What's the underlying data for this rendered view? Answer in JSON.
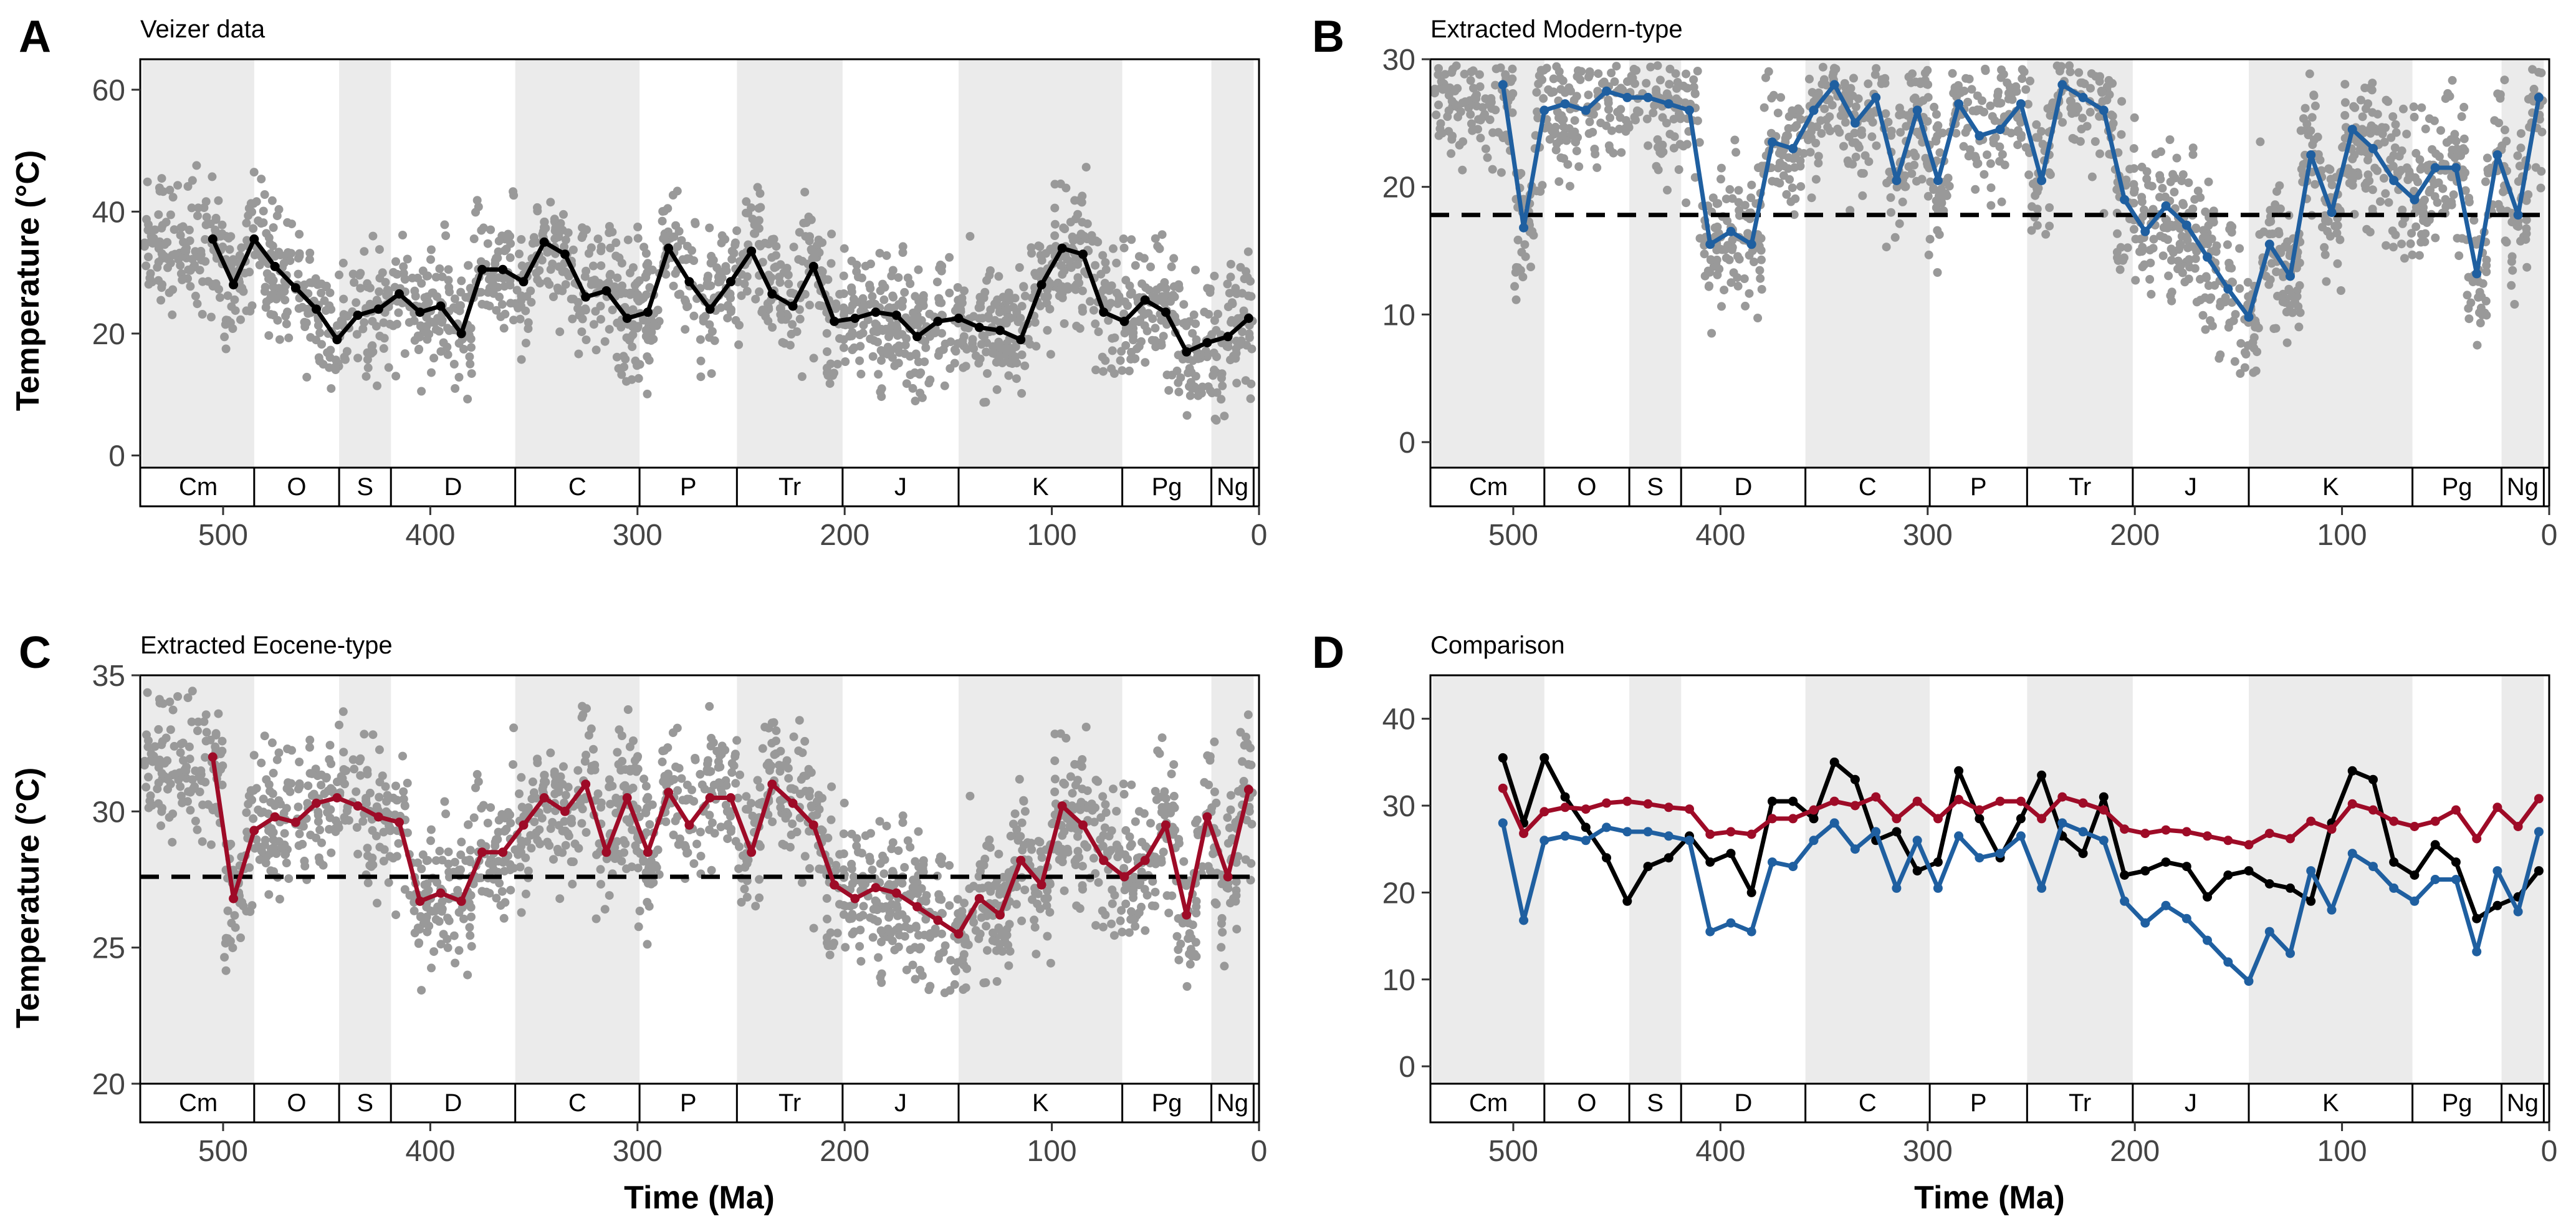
{
  "figure": {
    "xlabel": "Time (Ma)",
    "ylabel": "Temperature (°C)",
    "colors": {
      "data_points": "#999999",
      "veizer_line": "#000000",
      "modern_line": "#1f5fa0",
      "eocene_line": "#9e0b27",
      "period_shade": "#ebebeb",
      "reference_line": "#000000"
    }
  },
  "periods": [
    {
      "label": "Cm",
      "start": 539,
      "end": 485,
      "shaded": true
    },
    {
      "label": "O",
      "start": 485,
      "end": 444,
      "shaded": false
    },
    {
      "label": "S",
      "start": 444,
      "end": 419,
      "shaded": true
    },
    {
      "label": "D",
      "start": 419,
      "end": 359,
      "shaded": false
    },
    {
      "label": "C",
      "start": 359,
      "end": 299,
      "shaded": true
    },
    {
      "label": "P",
      "start": 299,
      "end": 252,
      "shaded": false
    },
    {
      "label": "Tr",
      "start": 252,
      "end": 201,
      "shaded": true
    },
    {
      "label": "J",
      "start": 201,
      "end": 145,
      "shaded": false
    },
    {
      "label": "K",
      "start": 145,
      "end": 66,
      "shaded": true
    },
    {
      "label": "Pg",
      "start": 66,
      "end": 23,
      "shaded": false
    },
    {
      "label": "Ng",
      "start": 23,
      "end": 2.6,
      "shaded": true
    }
  ],
  "chart_data": [
    {
      "panel": "A",
      "type": "line",
      "title": "Veizer data",
      "xlabel": "",
      "ylabel": "Temperature (°C)",
      "xlim": [
        540,
        0
      ],
      "ylim": [
        -2,
        65
      ],
      "xticks": [
        500,
        400,
        300,
        200,
        100,
        0
      ],
      "yticks": [
        0,
        20,
        40,
        60
      ],
      "grid": false,
      "scatter_shown": true,
      "series": [
        {
          "key": "veizer",
          "x": [
            505,
            495,
            485,
            475,
            465,
            455,
            445,
            435,
            425,
            415,
            405,
            395,
            385,
            375,
            365,
            355,
            345,
            335,
            325,
            315,
            305,
            295,
            285,
            275,
            265,
            255,
            245,
            235,
            225,
            215,
            205,
            195,
            185,
            175,
            165,
            155,
            145,
            135,
            125,
            115,
            105,
            95,
            85,
            75,
            65,
            55,
            45,
            35,
            25,
            15,
            5
          ],
          "values": [
            35.5,
            28.0,
            35.5,
            31.0,
            27.5,
            24.0,
            19.0,
            23.0,
            24.0,
            26.5,
            23.5,
            24.5,
            20.0,
            30.5,
            30.5,
            28.5,
            35.0,
            33.0,
            26.0,
            27.0,
            22.5,
            23.5,
            34.0,
            28.5,
            24.0,
            28.5,
            33.5,
            26.5,
            24.5,
            31.0,
            22.0,
            22.5,
            23.5,
            23.0,
            19.5,
            22.0,
            22.5,
            21.0,
            20.5,
            19.0,
            28.0,
            34.0,
            33.0,
            23.5,
            22.0,
            25.5,
            23.5,
            17.0,
            18.5,
            19.5,
            22.5
          ]
        }
      ]
    },
    {
      "panel": "B",
      "type": "line",
      "title": "Extracted Modern-type",
      "xlabel": "",
      "ylabel": "",
      "xlim": [
        540,
        0
      ],
      "ylim": [
        -2,
        30
      ],
      "xticks": [
        500,
        400,
        300,
        200,
        100,
        0
      ],
      "yticks": [
        0,
        10,
        20,
        30
      ],
      "grid": false,
      "scatter_shown": true,
      "reference_line": 17.8,
      "series": [
        {
          "key": "modern",
          "x": [
            505,
            495,
            485,
            475,
            465,
            455,
            445,
            435,
            425,
            415,
            405,
            395,
            385,
            375,
            365,
            355,
            345,
            335,
            325,
            315,
            305,
            295,
            285,
            275,
            265,
            255,
            245,
            235,
            225,
            215,
            205,
            195,
            185,
            175,
            165,
            155,
            145,
            135,
            125,
            115,
            105,
            95,
            85,
            75,
            65,
            55,
            45,
            35,
            25,
            15,
            5
          ],
          "values": [
            28.0,
            16.8,
            26.0,
            26.5,
            26.0,
            27.5,
            27.0,
            27.0,
            26.5,
            26.0,
            15.5,
            16.5,
            15.5,
            23.5,
            23.0,
            26.0,
            28.0,
            25.0,
            27.0,
            20.5,
            26.0,
            20.5,
            26.5,
            24.0,
            24.5,
            26.5,
            20.5,
            28.0,
            27.0,
            26.0,
            19.0,
            16.5,
            18.5,
            17.0,
            14.5,
            12.0,
            9.8,
            15.5,
            13.0,
            22.5,
            18.0,
            24.5,
            23.0,
            20.5,
            19.0,
            21.5,
            21.5,
            13.2,
            22.5,
            17.8,
            27.0
          ]
        }
      ]
    },
    {
      "panel": "C",
      "type": "line",
      "title": "Extracted Eocene-type",
      "xlabel": "",
      "ylabel": "Temperature (°C)",
      "xlim": [
        540,
        0
      ],
      "ylim": [
        20,
        35
      ],
      "xticks": [
        500,
        400,
        300,
        200,
        100,
        0
      ],
      "yticks": [
        20,
        25,
        30,
        35
      ],
      "grid": false,
      "scatter_shown": true,
      "reference_line": 27.6,
      "series": [
        {
          "key": "eocene",
          "x": [
            505,
            495,
            485,
            475,
            465,
            455,
            445,
            435,
            425,
            415,
            405,
            395,
            385,
            375,
            365,
            355,
            345,
            335,
            325,
            315,
            305,
            295,
            285,
            275,
            265,
            255,
            245,
            235,
            225,
            215,
            205,
            195,
            185,
            175,
            165,
            155,
            145,
            135,
            125,
            115,
            105,
            95,
            85,
            75,
            65,
            55,
            45,
            35,
            25,
            15,
            5
          ],
          "values": [
            32.0,
            26.8,
            29.3,
            29.8,
            29.6,
            30.3,
            30.5,
            30.2,
            29.8,
            29.6,
            26.7,
            27.0,
            26.7,
            28.5,
            28.5,
            29.5,
            30.5,
            30.0,
            31.0,
            28.5,
            30.5,
            28.5,
            30.7,
            29.5,
            30.5,
            30.5,
            28.5,
            31.0,
            30.3,
            29.5,
            27.3,
            26.8,
            27.2,
            27.0,
            26.5,
            26.0,
            25.5,
            26.8,
            26.2,
            28.2,
            27.3,
            30.2,
            29.5,
            28.2,
            27.6,
            28.2,
            29.5,
            26.2,
            29.8,
            27.6,
            30.8
          ]
        }
      ]
    },
    {
      "panel": "D",
      "type": "line",
      "title": "Comparison",
      "xlabel": "",
      "ylabel": "",
      "xlim": [
        540,
        0
      ],
      "ylim": [
        -2,
        45
      ],
      "xticks": [
        500,
        400,
        300,
        200,
        100,
        0
      ],
      "yticks": [
        0,
        10,
        20,
        30,
        40
      ],
      "grid": false,
      "scatter_shown": false,
      "series": [
        {
          "key": "veizer",
          "x": [
            505,
            495,
            485,
            475,
            465,
            455,
            445,
            435,
            425,
            415,
            405,
            395,
            385,
            375,
            365,
            355,
            345,
            335,
            325,
            315,
            305,
            295,
            285,
            275,
            265,
            255,
            245,
            235,
            225,
            215,
            205,
            195,
            185,
            175,
            165,
            155,
            145,
            135,
            125,
            115,
            105,
            95,
            85,
            75,
            65,
            55,
            45,
            35,
            25,
            15,
            5
          ],
          "values": [
            35.5,
            28.0,
            35.5,
            31.0,
            27.5,
            24.0,
            19.0,
            23.0,
            24.0,
            26.5,
            23.5,
            24.5,
            20.0,
            30.5,
            30.5,
            28.5,
            35.0,
            33.0,
            26.0,
            27.0,
            22.5,
            23.5,
            34.0,
            28.5,
            24.0,
            28.5,
            33.5,
            26.5,
            24.5,
            31.0,
            22.0,
            22.5,
            23.5,
            23.0,
            19.5,
            22.0,
            22.5,
            21.0,
            20.5,
            19.0,
            28.0,
            34.0,
            33.0,
            23.5,
            22.0,
            25.5,
            23.5,
            17.0,
            18.5,
            19.5,
            22.5
          ]
        },
        {
          "key": "eocene",
          "x": [
            505,
            495,
            485,
            475,
            465,
            455,
            445,
            435,
            425,
            415,
            405,
            395,
            385,
            375,
            365,
            355,
            345,
            335,
            325,
            315,
            305,
            295,
            285,
            275,
            265,
            255,
            245,
            235,
            225,
            215,
            205,
            195,
            185,
            175,
            165,
            155,
            145,
            135,
            125,
            115,
            105,
            95,
            85,
            75,
            65,
            55,
            45,
            35,
            25,
            15,
            5
          ],
          "values": [
            32.0,
            26.8,
            29.3,
            29.8,
            29.6,
            30.3,
            30.5,
            30.2,
            29.8,
            29.6,
            26.7,
            27.0,
            26.7,
            28.5,
            28.5,
            29.5,
            30.5,
            30.0,
            31.0,
            28.5,
            30.5,
            28.5,
            30.7,
            29.5,
            30.5,
            30.5,
            28.5,
            31.0,
            30.3,
            29.5,
            27.3,
            26.8,
            27.2,
            27.0,
            26.5,
            26.0,
            25.5,
            26.8,
            26.2,
            28.2,
            27.3,
            30.2,
            29.5,
            28.2,
            27.6,
            28.2,
            29.5,
            26.2,
            29.8,
            27.6,
            30.8
          ]
        },
        {
          "key": "modern",
          "x": [
            505,
            495,
            485,
            475,
            465,
            455,
            445,
            435,
            425,
            415,
            405,
            395,
            385,
            375,
            365,
            355,
            345,
            335,
            325,
            315,
            305,
            295,
            285,
            275,
            265,
            255,
            245,
            235,
            225,
            215,
            205,
            195,
            185,
            175,
            165,
            155,
            145,
            135,
            125,
            115,
            105,
            95,
            85,
            75,
            65,
            55,
            45,
            35,
            25,
            15,
            5
          ],
          "values": [
            28.0,
            16.8,
            26.0,
            26.5,
            26.0,
            27.5,
            27.0,
            27.0,
            26.5,
            26.0,
            15.5,
            16.5,
            15.5,
            23.5,
            23.0,
            26.0,
            28.0,
            25.0,
            27.0,
            20.5,
            26.0,
            20.5,
            26.5,
            24.0,
            24.5,
            26.5,
            20.5,
            28.0,
            27.0,
            26.0,
            19.0,
            16.5,
            18.5,
            17.0,
            14.5,
            12.0,
            9.8,
            15.5,
            13.0,
            22.5,
            18.0,
            24.5,
            23.0,
            20.5,
            19.0,
            21.5,
            21.5,
            13.2,
            22.5,
            17.8,
            27.0
          ]
        }
      ]
    }
  ]
}
